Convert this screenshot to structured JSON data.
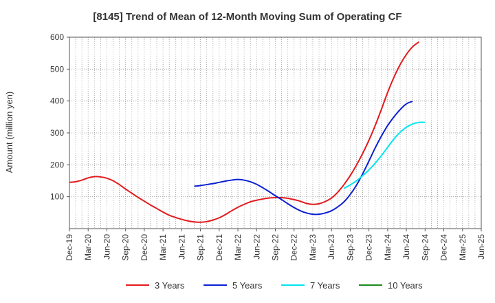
{
  "chart_data": {
    "type": "line",
    "title": "[8145]  Trend of Mean of 12-Month Moving Sum of Operating CF",
    "ylabel": "Amount (million yen)",
    "xlabel": "",
    "ylim": [
      0,
      600
    ],
    "yticks": [
      100,
      200,
      300,
      400,
      500,
      600
    ],
    "x_range": [
      0,
      66
    ],
    "x_ticks": [
      {
        "m": 0,
        "label": "Dec-19"
      },
      {
        "m": 3,
        "label": "Mar-20"
      },
      {
        "m": 6,
        "label": "Jun-20"
      },
      {
        "m": 9,
        "label": "Sep-20"
      },
      {
        "m": 12,
        "label": "Dec-20"
      },
      {
        "m": 15,
        "label": "Mar-21"
      },
      {
        "m": 18,
        "label": "Jun-21"
      },
      {
        "m": 21,
        "label": "Sep-21"
      },
      {
        "m": 24,
        "label": "Dec-21"
      },
      {
        "m": 27,
        "label": "Mar-22"
      },
      {
        "m": 30,
        "label": "Jun-22"
      },
      {
        "m": 33,
        "label": "Sep-22"
      },
      {
        "m": 36,
        "label": "Dec-22"
      },
      {
        "m": 39,
        "label": "Mar-23"
      },
      {
        "m": 42,
        "label": "Jun-23"
      },
      {
        "m": 45,
        "label": "Sep-23"
      },
      {
        "m": 48,
        "label": "Dec-23"
      },
      {
        "m": 51,
        "label": "Mar-24"
      },
      {
        "m": 54,
        "label": "Jun-24"
      },
      {
        "m": 57,
        "label": "Sep-24"
      },
      {
        "m": 60,
        "label": "Dec-24"
      },
      {
        "m": 63,
        "label": "Mar-25"
      },
      {
        "m": 66,
        "label": "Jun-25"
      }
    ],
    "legend_position": "bottom",
    "series": [
      {
        "name": "3 Years",
        "color": "#e31a1c",
        "points": [
          [
            0,
            145
          ],
          [
            1,
            147
          ],
          [
            2,
            152
          ],
          [
            3,
            159
          ],
          [
            4,
            163
          ],
          [
            5,
            162
          ],
          [
            6,
            158
          ],
          [
            7,
            150
          ],
          [
            8,
            138
          ],
          [
            9,
            124
          ],
          [
            10,
            111
          ],
          [
            11,
            98
          ],
          [
            12,
            86
          ],
          [
            13,
            74
          ],
          [
            14,
            63
          ],
          [
            15,
            52
          ],
          [
            16,
            42
          ],
          [
            17,
            35
          ],
          [
            18,
            29
          ],
          [
            19,
            24
          ],
          [
            20,
            21
          ],
          [
            21,
            20
          ],
          [
            22,
            22
          ],
          [
            23,
            27
          ],
          [
            24,
            34
          ],
          [
            25,
            44
          ],
          [
            26,
            56
          ],
          [
            27,
            67
          ],
          [
            28,
            76
          ],
          [
            29,
            84
          ],
          [
            30,
            89
          ],
          [
            31,
            93
          ],
          [
            32,
            96
          ],
          [
            33,
            97
          ],
          [
            34,
            97
          ],
          [
            35,
            95
          ],
          [
            36,
            91
          ],
          [
            37,
            86
          ],
          [
            38,
            79
          ],
          [
            39,
            76
          ],
          [
            40,
            78
          ],
          [
            41,
            85
          ],
          [
            42,
            96
          ],
          [
            43,
            114
          ],
          [
            44,
            138
          ],
          [
            45,
            166
          ],
          [
            46,
            199
          ],
          [
            47,
            236
          ],
          [
            48,
            277
          ],
          [
            49,
            323
          ],
          [
            50,
            374
          ],
          [
            51,
            427
          ],
          [
            52,
            474
          ],
          [
            53,
            514
          ],
          [
            54,
            546
          ],
          [
            55,
            570
          ],
          [
            56,
            585
          ]
        ]
      },
      {
        "name": "5 Years",
        "color": "#0b1fd3",
        "points": [
          [
            20,
            133
          ],
          [
            21,
            135
          ],
          [
            22,
            138
          ],
          [
            23,
            141
          ],
          [
            24,
            145
          ],
          [
            25,
            149
          ],
          [
            26,
            152
          ],
          [
            27,
            154
          ],
          [
            28,
            152
          ],
          [
            29,
            147
          ],
          [
            30,
            139
          ],
          [
            31,
            128
          ],
          [
            32,
            116
          ],
          [
            33,
            103
          ],
          [
            34,
            91
          ],
          [
            35,
            78
          ],
          [
            36,
            66
          ],
          [
            37,
            56
          ],
          [
            38,
            49
          ],
          [
            39,
            45
          ],
          [
            40,
            45
          ],
          [
            41,
            49
          ],
          [
            42,
            56
          ],
          [
            43,
            68
          ],
          [
            44,
            84
          ],
          [
            45,
            107
          ],
          [
            46,
            136
          ],
          [
            47,
            172
          ],
          [
            48,
            212
          ],
          [
            49,
            253
          ],
          [
            50,
            290
          ],
          [
            51,
            323
          ],
          [
            52,
            350
          ],
          [
            53,
            373
          ],
          [
            54,
            391
          ],
          [
            55,
            399
          ]
        ]
      },
      {
        "name": "7 Years",
        "color": "#00e5ee",
        "points": [
          [
            44,
            126
          ],
          [
            45,
            137
          ],
          [
            46,
            150
          ],
          [
            47,
            166
          ],
          [
            48,
            184
          ],
          [
            49,
            205
          ],
          [
            50,
            229
          ],
          [
            51,
            255
          ],
          [
            52,
            281
          ],
          [
            53,
            302
          ],
          [
            54,
            318
          ],
          [
            55,
            328
          ],
          [
            56,
            333
          ],
          [
            57,
            333
          ]
        ]
      },
      {
        "name": "10 Years",
        "color": "#1a8a1a",
        "points": []
      }
    ]
  }
}
